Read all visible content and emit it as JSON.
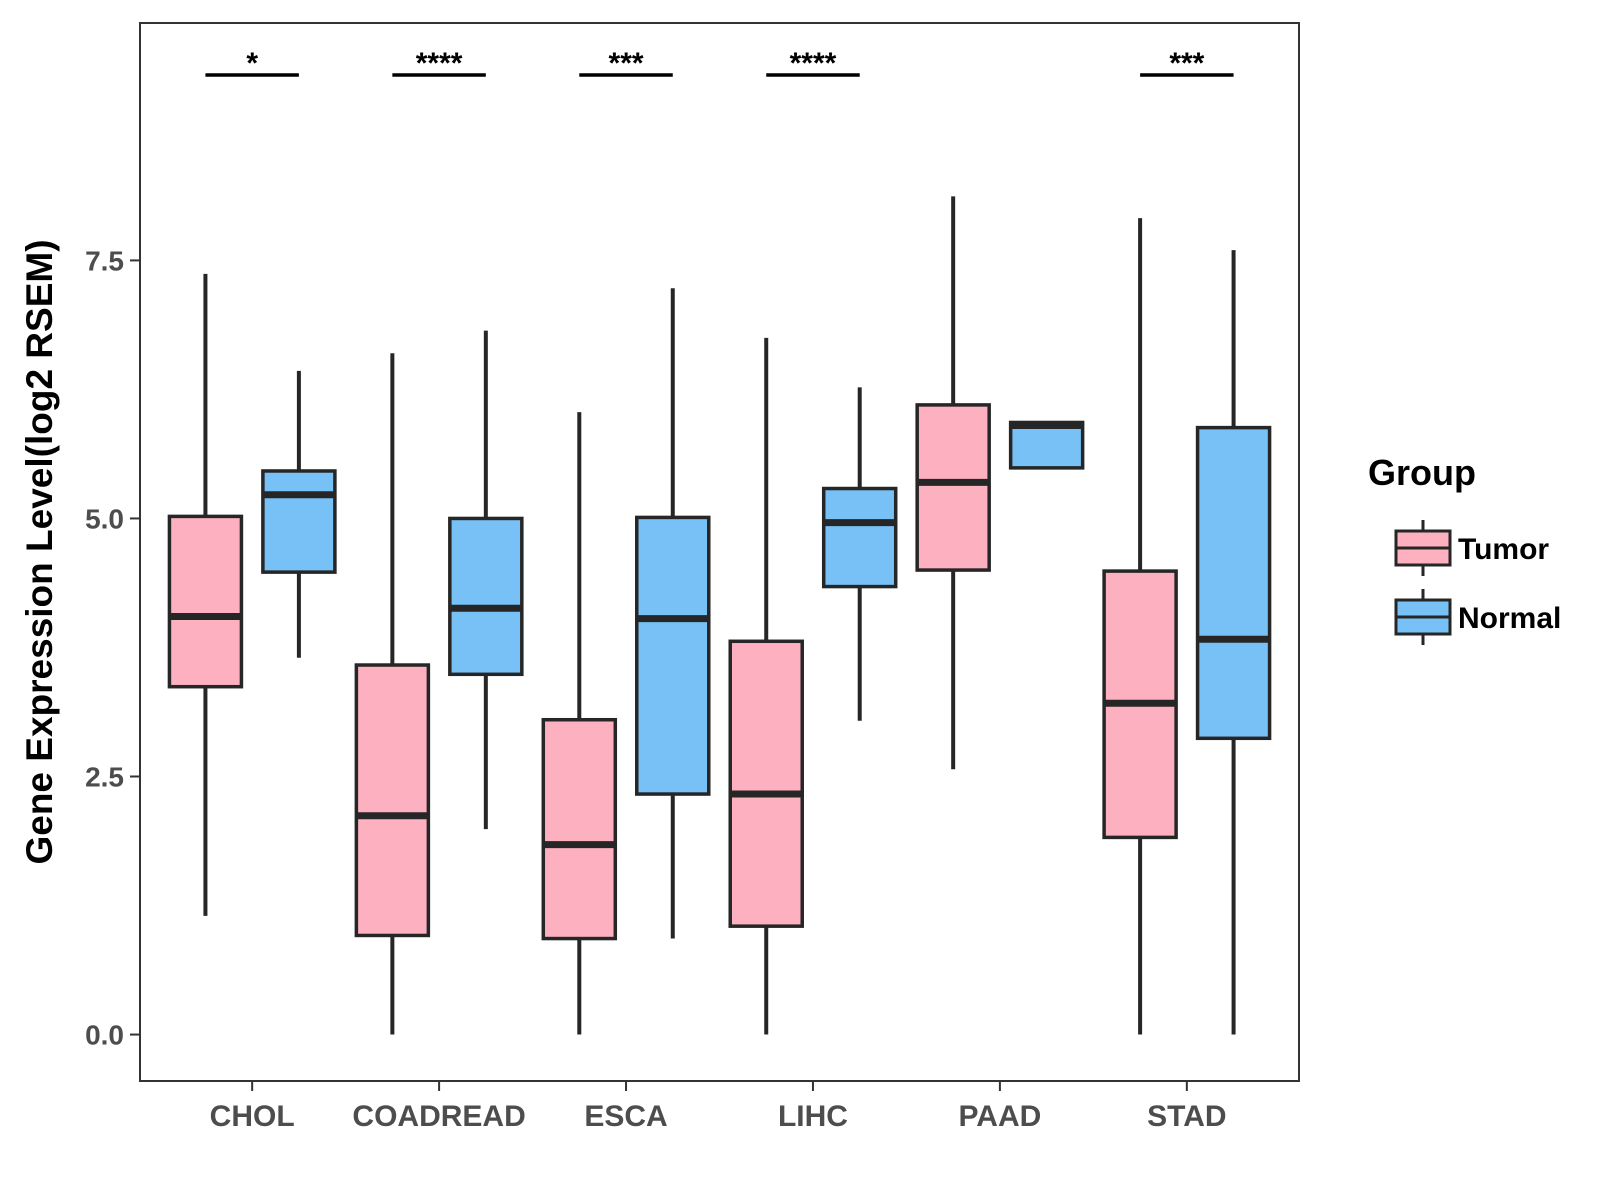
{
  "chart_data": {
    "type": "boxplot",
    "title": "",
    "xlabel": "",
    "ylabel": "Gene Expression Level(log2 RSEM)",
    "ylim": [
      -0.45,
      9.8
    ],
    "yticks": [
      0.0,
      2.5,
      5.0,
      7.5
    ],
    "ytick_labels": [
      "0.0",
      "2.5",
      "5.0",
      "7.5"
    ],
    "categories": [
      "CHOL",
      "COADREAD",
      "ESCA",
      "LIHC",
      "PAAD",
      "STAD"
    ],
    "legend": {
      "title": "Group",
      "placement": "right",
      "entries": [
        "Tumor",
        "Normal"
      ]
    },
    "series": [
      {
        "name": "Tumor",
        "color": "#FDB0C0",
        "boxes": [
          {
            "whisker_low": 1.15,
            "q1": 3.37,
            "median": 4.05,
            "q3": 5.02,
            "whisker_high": 7.37
          },
          {
            "whisker_low": 0.0,
            "q1": 0.96,
            "median": 2.12,
            "q3": 3.58,
            "whisker_high": 6.6
          },
          {
            "whisker_low": 0.0,
            "q1": 0.93,
            "median": 1.84,
            "q3": 3.05,
            "whisker_high": 6.03
          },
          {
            "whisker_low": 0.0,
            "q1": 1.05,
            "median": 2.33,
            "q3": 3.81,
            "whisker_high": 6.75
          },
          {
            "whisker_low": 2.57,
            "q1": 4.5,
            "median": 5.35,
            "q3": 6.1,
            "whisker_high": 8.12
          },
          {
            "whisker_low": 0.0,
            "q1": 1.91,
            "median": 3.21,
            "q3": 4.49,
            "whisker_high": 7.91
          }
        ]
      },
      {
        "name": "Normal",
        "color": "#77C1F7",
        "boxes": [
          {
            "whisker_low": 3.65,
            "q1": 4.48,
            "median": 5.23,
            "q3": 5.46,
            "whisker_high": 6.43
          },
          {
            "whisker_low": 1.99,
            "q1": 3.49,
            "median": 4.13,
            "q3": 5.0,
            "whisker_high": 6.82
          },
          {
            "whisker_low": 0.93,
            "q1": 2.33,
            "median": 4.03,
            "q3": 5.01,
            "whisker_high": 7.23
          },
          {
            "whisker_low": 3.04,
            "q1": 4.34,
            "median": 4.96,
            "q3": 5.29,
            "whisker_high": 6.27
          },
          {
            "whisker_low": 5.49,
            "q1": 5.49,
            "median": 5.9,
            "q3": 5.93,
            "whisker_high": 5.93
          },
          {
            "whisker_low": 0.0,
            "q1": 2.87,
            "median": 3.83,
            "q3": 5.88,
            "whisker_high": 7.6
          }
        ]
      }
    ],
    "significance": [
      {
        "category": "CHOL",
        "label": "*"
      },
      {
        "category": "COADREAD",
        "label": "****"
      },
      {
        "category": "ESCA",
        "label": "***"
      },
      {
        "category": "LIHC",
        "label": "****"
      },
      {
        "category": "PAAD",
        "label": ""
      },
      {
        "category": "STAD",
        "label": "***"
      }
    ]
  }
}
